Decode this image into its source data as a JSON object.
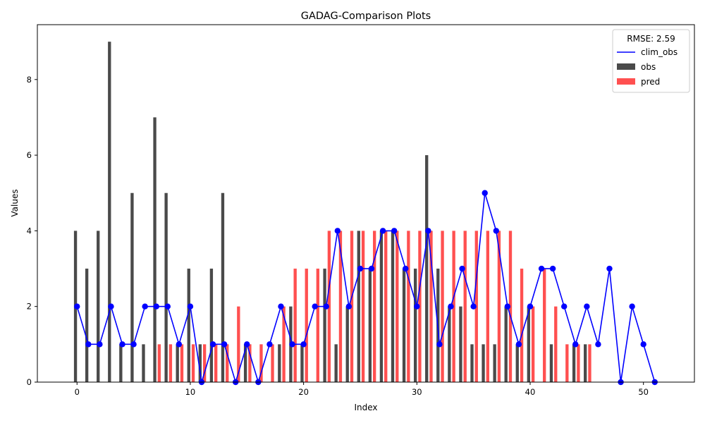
{
  "chart_data": {
    "type": "bar",
    "title": "GADAG-Comparison Plots",
    "xlabel": "Index",
    "ylabel": "Values",
    "xlim": [
      -3.5,
      54.5
    ],
    "ylim": [
      0,
      9.45
    ],
    "xticks": [
      0,
      10,
      20,
      30,
      40,
      50
    ],
    "yticks": [
      0,
      2,
      4,
      6,
      8
    ],
    "legend": {
      "title": "RMSE: 2.59",
      "position": "top-right",
      "entries": [
        "clim_obs",
        "obs",
        "pred"
      ]
    },
    "colors": {
      "obs": "#4a4a4a",
      "pred": "#ff5050",
      "clim_obs": "#0000ff"
    },
    "series": [
      {
        "name": "obs",
        "type": "bar",
        "x": [
          0,
          1,
          2,
          3,
          4,
          5,
          6,
          7,
          8,
          9,
          10,
          11,
          12,
          13,
          14,
          15,
          16,
          17,
          18,
          19,
          20,
          21,
          22,
          23,
          24,
          25,
          26,
          27,
          28,
          29,
          30,
          31,
          32,
          33,
          34,
          35,
          36,
          37,
          38,
          39,
          40,
          41,
          42,
          43,
          44,
          45
        ],
        "values": [
          4,
          3,
          4,
          9,
          1,
          5,
          1,
          7,
          5,
          1,
          3,
          1,
          3,
          5,
          0,
          1,
          0,
          0,
          1,
          2,
          1,
          0,
          3,
          1,
          2,
          4,
          3,
          4,
          4,
          3,
          3,
          6,
          3,
          2,
          2,
          1,
          1,
          1,
          2,
          1,
          2,
          0,
          1,
          0,
          1,
          1
        ]
      },
      {
        "name": "pred",
        "type": "bar",
        "x": [
          0,
          1,
          2,
          3,
          4,
          5,
          6,
          7,
          8,
          9,
          10,
          11,
          12,
          13,
          14,
          15,
          16,
          17,
          18,
          19,
          20,
          21,
          22,
          23,
          24,
          25,
          26,
          27,
          28,
          29,
          30,
          31,
          32,
          33,
          34,
          35,
          36,
          37,
          38,
          39,
          40,
          41,
          42,
          43,
          44,
          45
        ],
        "values": [
          0,
          0,
          0,
          0,
          0,
          0,
          0,
          1,
          1,
          1,
          1,
          1,
          1,
          1,
          2,
          1,
          1,
          1,
          2,
          3,
          3,
          3,
          4,
          4,
          4,
          4,
          4,
          4,
          4,
          4,
          4,
          4,
          4,
          4,
          4,
          4,
          4,
          4,
          4,
          3,
          2,
          3,
          2,
          1,
          1,
          1
        ]
      },
      {
        "name": "clim_obs",
        "type": "line",
        "x": [
          0,
          1,
          2,
          3,
          4,
          5,
          6,
          7,
          8,
          9,
          10,
          11,
          12,
          13,
          14,
          15,
          16,
          17,
          18,
          19,
          20,
          21,
          22,
          23,
          24,
          25,
          26,
          27,
          28,
          29,
          30,
          31,
          32,
          33,
          34,
          35,
          36,
          37,
          38,
          39,
          40,
          41,
          42,
          43,
          44,
          45,
          46,
          47,
          48,
          49,
          50,
          51
        ],
        "values": [
          2,
          1,
          1,
          2,
          1,
          1,
          2,
          2,
          2,
          1,
          2,
          0,
          1,
          1,
          0,
          1,
          0,
          1,
          2,
          1,
          1,
          2,
          2,
          4,
          2,
          3,
          3,
          4,
          4,
          3,
          2,
          4,
          1,
          2,
          3,
          2,
          5,
          4,
          2,
          1,
          2,
          3,
          3,
          2,
          1,
          2,
          1,
          3,
          0,
          2,
          1,
          0
        ]
      }
    ]
  }
}
